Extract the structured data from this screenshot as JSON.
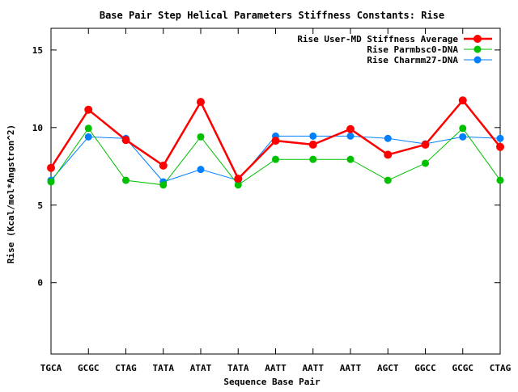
{
  "chart_data": {
    "type": "line",
    "title": "Base Pair Step Helical Parameters Stiffness Constants: Rise",
    "xlabel": "Sequence Base Pair",
    "ylabel": "Rise (Kcal/mol*Angstron^2)",
    "categories": [
      "TGCA",
      "GCGC",
      "CTAG",
      "TATA",
      "ATAT",
      "TATA",
      "AATT",
      "AATT",
      "AATT",
      "AGCT",
      "GGCC",
      "GCGC",
      "CTAG"
    ],
    "ylim": [
      -4.6,
      16.4
    ],
    "yticks": [
      0,
      5,
      10,
      15
    ],
    "grid": false,
    "legend_position": "top-right",
    "series": [
      {
        "name": "Rise User-MD Stiffness Average",
        "color": "#ff0000",
        "values": [
          7.4,
          11.15,
          9.2,
          7.55,
          11.65,
          6.7,
          9.15,
          8.9,
          9.9,
          8.25,
          8.9,
          11.75,
          8.75
        ]
      },
      {
        "name": "Rise Parmbsc0-DNA",
        "color": "#00c000",
        "values": [
          6.5,
          9.95,
          6.6,
          6.3,
          9.4,
          6.3,
          7.95,
          7.95,
          7.95,
          6.6,
          7.7,
          9.95,
          6.6
        ]
      },
      {
        "name": "Rise Charmm27-DNA",
        "color": "#0080ff",
        "values": [
          6.6,
          9.4,
          9.3,
          6.5,
          7.3,
          6.6,
          9.45,
          9.45,
          9.45,
          9.3,
          8.95,
          9.4,
          9.3
        ]
      }
    ]
  }
}
